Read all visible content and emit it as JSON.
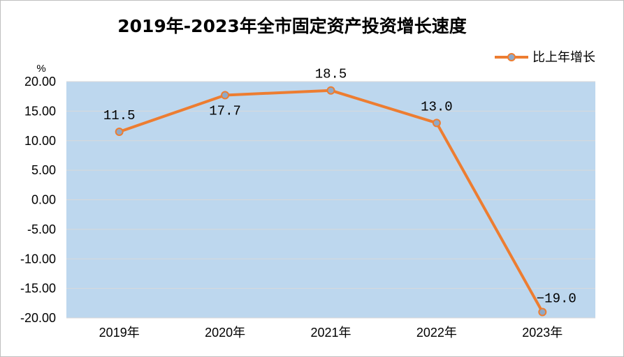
{
  "chart_data": {
    "type": "line",
    "title": "2019年-2023年全市固定资产投资增长速度",
    "ylabel": "%",
    "categories": [
      "2019年",
      "2020年",
      "2021年",
      "2022年",
      "2023年"
    ],
    "series": [
      {
        "name": "比上年增长",
        "values": [
          11.5,
          17.7,
          18.5,
          13.0,
          -19.0
        ],
        "labels": [
          "11.5",
          "17.7",
          "18.5",
          "13.0",
          "−19.0"
        ]
      }
    ],
    "ylim": [
      -20,
      20
    ],
    "yticks": [
      "20.00",
      "15.00",
      "10.00",
      "5.00",
      "0.00",
      "-5.00",
      "-10.00",
      "-15.00",
      "-20.00"
    ],
    "grid": true,
    "legend": "top-right",
    "colors": {
      "plot_background": "#bdd7ee",
      "line": "#ed7d31",
      "marker": "#8ea9c8",
      "grid": "#d9d9d9"
    }
  }
}
